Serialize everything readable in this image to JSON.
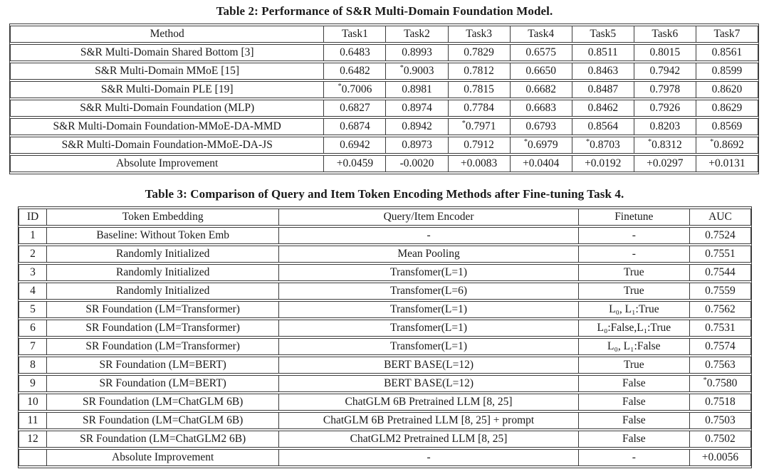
{
  "table2": {
    "title": "Table 2: Performance of S&R Multi-Domain Foundation Model.",
    "columns": [
      "Method",
      "Task1",
      "Task2",
      "Task3",
      "Task4",
      "Task5",
      "Task6",
      "Task7"
    ],
    "rows": [
      [
        "S&R Multi-Domain Shared Bottom [3]",
        "0.6483",
        "0.8993",
        "0.7829",
        "0.6575",
        "0.8511",
        "0.8015",
        "0.8561"
      ],
      [
        "S&R Multi-Domain MMoE [15]",
        "0.6482",
        "*0.9003",
        "0.7812",
        "0.6650",
        "0.8463",
        "0.7942",
        "0.8599"
      ],
      [
        "S&R Multi-Domain PLE [19]",
        "*0.7006",
        "0.8981",
        "0.7815",
        "0.6682",
        "0.8487",
        "0.7978",
        "0.8620"
      ],
      [
        "S&R Multi-Domain Foundation (MLP)",
        "0.6827",
        "0.8974",
        "0.7784",
        "0.6683",
        "0.8462",
        "0.7926",
        "0.8629"
      ],
      [
        "S&R Multi-Domain Foundation-MMoE-DA-MMD",
        "0.6874",
        "0.8942",
        "*0.7971",
        "0.6793",
        "0.8564",
        "0.8203",
        "0.8569"
      ],
      [
        "S&R Multi-Domain Foundation-MMoE-DA-JS",
        "0.6942",
        "0.8973",
        "0.7912",
        "*0.6979",
        "*0.8703",
        "*0.8312",
        "*0.8692"
      ],
      [
        "Absolute Improvement",
        "+0.0459",
        "-0.0020",
        "+0.0083",
        "+0.0404",
        "+0.0192",
        "+0.0297",
        "+0.0131"
      ]
    ]
  },
  "table3": {
    "title": "Table 3: Comparison of Query and Item Token Encoding Methods after Fine-tuning Task 4.",
    "columns": [
      "ID",
      "Token Embedding",
      "Query/Item Encoder",
      "Finetune",
      "AUC"
    ],
    "rows": [
      [
        "1",
        "Baseline: Without Token Emb",
        "-",
        "-",
        "0.7524"
      ],
      [
        "2",
        "Randomly Initialized",
        "Mean Pooling",
        "-",
        "0.7551"
      ],
      [
        "3",
        "Randomly Initialized",
        "Transfomer(L=1)",
        "True",
        "0.7544"
      ],
      [
        "4",
        "Randomly Initialized",
        "Transfomer(L=6)",
        "True",
        "0.7559"
      ],
      [
        "5",
        "SR Foundation (LM=Transformer)",
        "Transfomer(L=1)",
        "L₀, L₁:True",
        "0.7562"
      ],
      [
        "6",
        "SR Foundation (LM=Transformer)",
        "Transfomer(L=1)",
        "L₀:False,L₁:True",
        "0.7531"
      ],
      [
        "7",
        "SR Foundation (LM=Transformer)",
        "Transfomer(L=1)",
        "L₀, L₁:False",
        "0.7574"
      ],
      [
        "8",
        "SR Foundation (LM=BERT)",
        "BERT BASE(L=12)",
        "True",
        "0.7563"
      ],
      [
        "9",
        "SR Foundation (LM=BERT)",
        "BERT BASE(L=12)",
        "False",
        "*0.7580"
      ],
      [
        "10",
        "SR Foundation (LM=ChatGLM 6B)",
        "ChatGLM 6B Pretrained LLM [8, 25]",
        "False",
        "0.7518"
      ],
      [
        "11",
        "SR Foundation (LM=ChatGLM 6B)",
        "ChatGLM 6B Pretrained LLM [8, 25] + prompt",
        "False",
        "0.7503"
      ],
      [
        "12",
        "SR Foundation (LM=ChatGLM2 6B)",
        "ChatGLM2 Pretrained LLM [8, 25]",
        "False",
        "0.7502"
      ],
      [
        "",
        "Absolute Improvement",
        "-",
        "-",
        "+0.0056"
      ]
    ]
  }
}
